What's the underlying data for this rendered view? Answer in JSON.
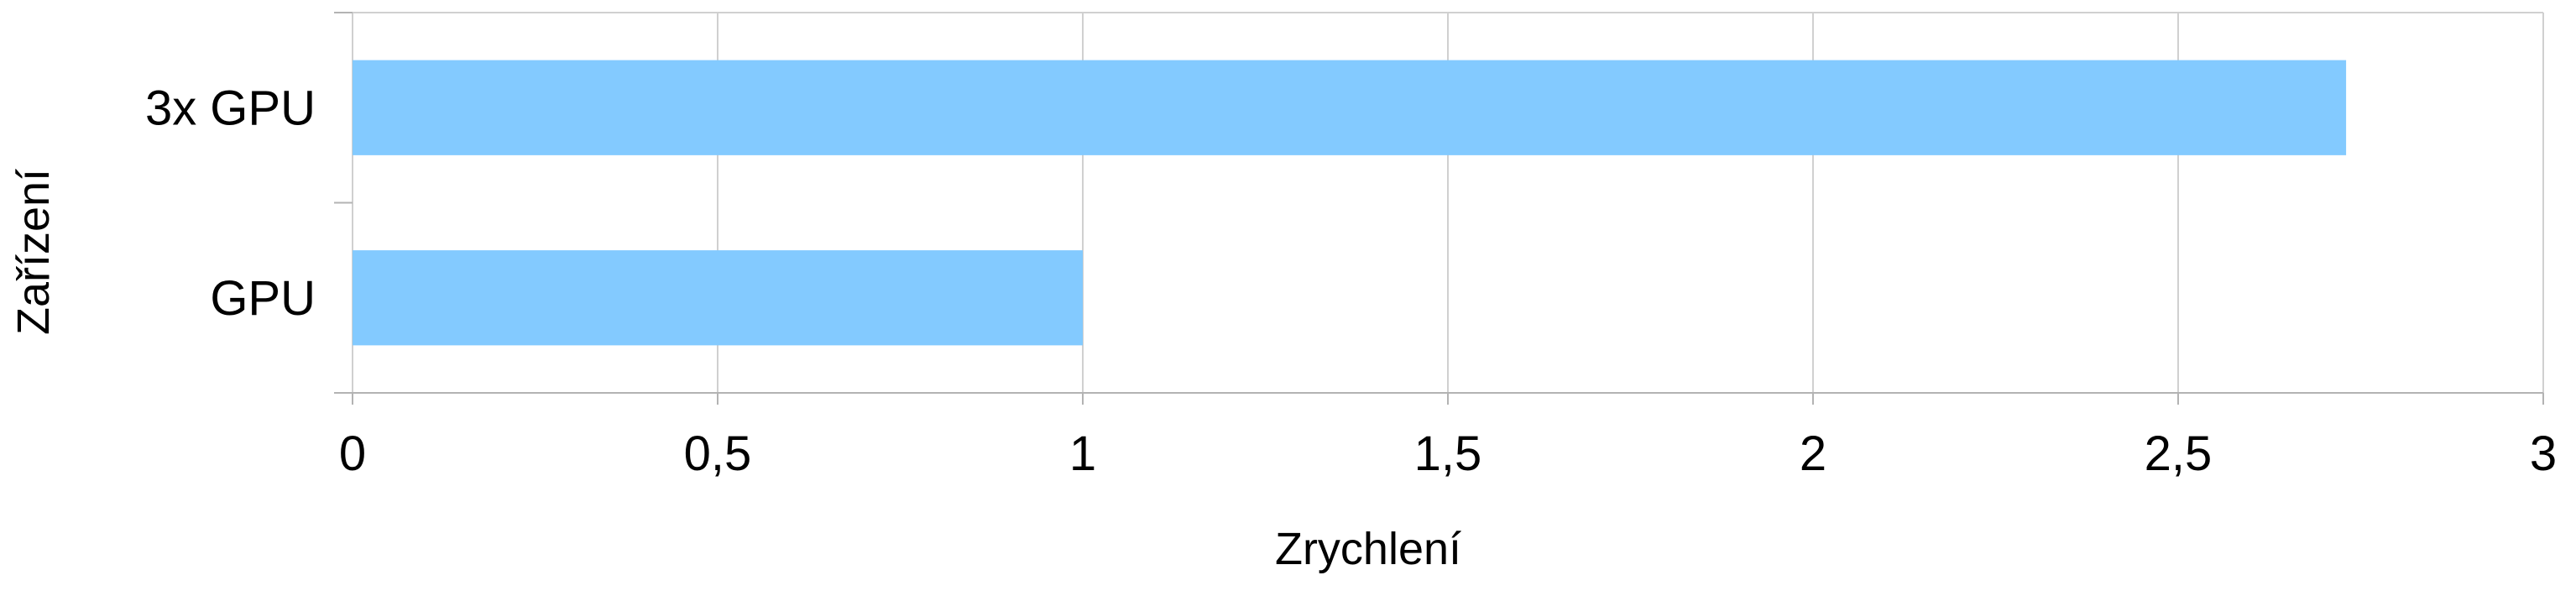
{
  "chart_data": {
    "type": "bar",
    "orientation": "horizontal",
    "categories": [
      "3x GPU",
      "GPU"
    ],
    "values": [
      2.73,
      1.0
    ],
    "xlabel": "Zrychlení",
    "ylabel": "Zařízení",
    "xlim": [
      0,
      3
    ],
    "x_ticks": [
      0,
      0.5,
      1,
      1.5,
      2,
      2.5,
      3
    ],
    "x_tick_labels": [
      "0",
      "0,5",
      "1",
      "1,5",
      "2",
      "2,5",
      "3"
    ],
    "grid": true,
    "legend": "none",
    "colors": {
      "bar": "#83caff",
      "grid": "#d0d0d0",
      "axis": "#b3b3b3"
    }
  }
}
